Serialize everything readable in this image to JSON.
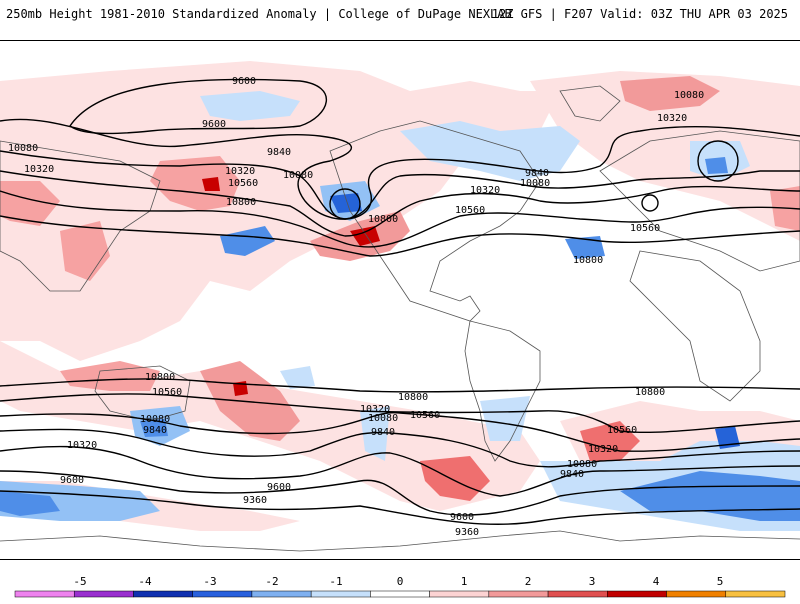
{
  "header": {
    "title_left": "250mb Height 1981-2010 Standardized Anomaly | College of DuPage NEXLAB",
    "title_right": "12Z GFS | F207 Valid: 03Z THU APR 03 2025"
  },
  "colors": {
    "anom_pos": [
      "#fcd3d3",
      "#f6a2a2",
      "#ef6f6f",
      "#e43a3a",
      "#c80000"
    ],
    "anom_neg": [
      "#c6e0fb",
      "#93c1f5",
      "#4f8ee8",
      "#2563d8",
      "#0d3fb0"
    ],
    "contour": "#000000",
    "land_outline": "#555555"
  },
  "map": {
    "contour_labels": [
      {
        "text": "9600"
      },
      {
        "text": "9600"
      },
      {
        "text": "9840"
      },
      {
        "text": "10080"
      },
      {
        "text": "10080"
      },
      {
        "text": "10320"
      },
      {
        "text": "10320"
      },
      {
        "text": "10560"
      },
      {
        "text": "10800"
      },
      {
        "text": "10800"
      },
      {
        "text": "10080"
      },
      {
        "text": "10320"
      },
      {
        "text": "9840"
      },
      {
        "text": "10320"
      },
      {
        "text": "10560"
      },
      {
        "text": "10080"
      },
      {
        "text": "10560"
      },
      {
        "text": "10800"
      },
      {
        "text": "10800"
      },
      {
        "text": "10560"
      },
      {
        "text": "10080"
      },
      {
        "text": "9840"
      },
      {
        "text": "10320"
      },
      {
        "text": "9600"
      },
      {
        "text": "10800"
      },
      {
        "text": "10320"
      },
      {
        "text": "10080"
      },
      {
        "text": "9840"
      },
      {
        "text": "10560"
      },
      {
        "text": "9600"
      },
      {
        "text": "9360"
      },
      {
        "text": "10800"
      },
      {
        "text": "10560"
      },
      {
        "text": "10320"
      },
      {
        "text": "10080"
      },
      {
        "text": "9840"
      },
      {
        "text": "9600"
      },
      {
        "text": "9360"
      }
    ]
  },
  "colorbar": {
    "ticks": [
      "-5",
      "-4",
      "-3",
      "-2",
      "-1",
      "0",
      "1",
      "2",
      "3",
      "4",
      "5"
    ],
    "colors": [
      "#ee82ee",
      "#9a2fcf",
      "#1030b0",
      "#2860dd",
      "#7fb0f0",
      "#c6e0fb",
      "#ffffff",
      "#fcd3d3",
      "#f29a9a",
      "#e05050",
      "#c00000",
      "#f08000",
      "#f8c040"
    ]
  }
}
